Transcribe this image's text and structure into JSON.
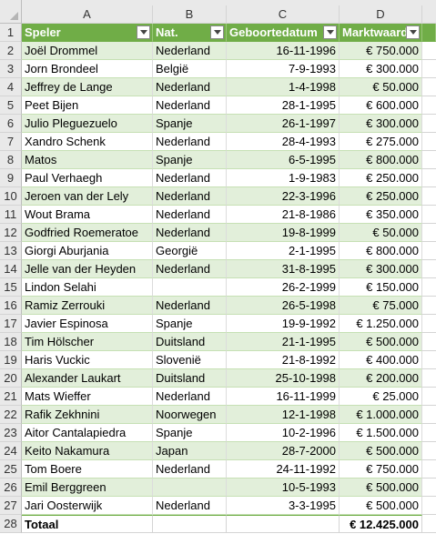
{
  "columns": [
    "A",
    "B",
    "C",
    "D"
  ],
  "headers": {
    "speler": "Speler",
    "nat": "Nat.",
    "geboortedatum": "Geboortedatum",
    "marktwaarde": "Marktwaarde"
  },
  "players": [
    {
      "name": "Joël Drommel",
      "nat": "Nederland",
      "dob": "16-11-1996",
      "value": "€ 750.000"
    },
    {
      "name": "Jorn Brondeel",
      "nat": "België",
      "dob": "7-9-1993",
      "value": "€ 300.000"
    },
    {
      "name": "Jeffrey de Lange",
      "nat": "Nederland",
      "dob": "1-4-1998",
      "value": "€ 50.000"
    },
    {
      "name": "Peet Bijen",
      "nat": "Nederland",
      "dob": "28-1-1995",
      "value": "€ 600.000"
    },
    {
      "name": "Julio Pleguezuelo",
      "nat": "Spanje",
      "dob": "26-1-1997",
      "value": "€ 300.000"
    },
    {
      "name": "Xandro Schenk",
      "nat": "Nederland",
      "dob": "28-4-1993",
      "value": "€ 275.000"
    },
    {
      "name": "Matos",
      "nat": "Spanje",
      "dob": "6-5-1995",
      "value": "€ 800.000"
    },
    {
      "name": "Paul Verhaegh",
      "nat": "Nederland",
      "dob": "1-9-1983",
      "value": "€ 250.000"
    },
    {
      "name": "Jeroen van der Lely",
      "nat": "Nederland",
      "dob": "22-3-1996",
      "value": "€ 250.000"
    },
    {
      "name": "Wout Brama",
      "nat": "Nederland",
      "dob": "21-8-1986",
      "value": "€ 350.000"
    },
    {
      "name": "Godfried Roemeratoe",
      "nat": "Nederland",
      "dob": "19-8-1999",
      "value": "€ 50.000"
    },
    {
      "name": "Giorgi Aburjania",
      "nat": "Georgië",
      "dob": "2-1-1995",
      "value": "€ 800.000"
    },
    {
      "name": "Jelle van der Heyden",
      "nat": "Nederland",
      "dob": "31-8-1995",
      "value": "€ 300.000"
    },
    {
      "name": "Lindon Selahi",
      "nat": "",
      "dob": "26-2-1999",
      "value": "€ 150.000"
    },
    {
      "name": "Ramiz Zerrouki",
      "nat": "Nederland",
      "dob": "26-5-1998",
      "value": "€ 75.000"
    },
    {
      "name": "Javier Espinosa",
      "nat": "Spanje",
      "dob": "19-9-1992",
      "value": "€ 1.250.000"
    },
    {
      "name": "Tim Hölscher",
      "nat": "Duitsland",
      "dob": "21-1-1995",
      "value": "€ 500.000"
    },
    {
      "name": "Haris Vuckic",
      "nat": "Slovenië",
      "dob": "21-8-1992",
      "value": "€ 400.000"
    },
    {
      "name": "Alexander Laukart",
      "nat": "Duitsland",
      "dob": "25-10-1998",
      "value": "€ 200.000"
    },
    {
      "name": "Mats Wieffer",
      "nat": "Nederland",
      "dob": "16-11-1999",
      "value": "€ 25.000"
    },
    {
      "name": "Rafik Zekhnini",
      "nat": "Noorwegen",
      "dob": "12-1-1998",
      "value": "€ 1.000.000"
    },
    {
      "name": "Aitor Cantalapiedra",
      "nat": "Spanje",
      "dob": "10-2-1996",
      "value": "€ 1.500.000"
    },
    {
      "name": "Keito Nakamura",
      "nat": "Japan",
      "dob": "28-7-2000",
      "value": "€ 500.000"
    },
    {
      "name": "Tom Boere",
      "nat": "Nederland",
      "dob": "24-11-1992",
      "value": "€ 750.000"
    },
    {
      "name": "Emil Berggreen",
      "nat": "",
      "dob": "10-5-1993",
      "value": "€ 500.000"
    },
    {
      "name": "Jari Oosterwijk",
      "nat": "Nederland",
      "dob": "3-3-1995",
      "value": "€ 500.000"
    }
  ],
  "total": {
    "label": "Totaal",
    "value": "€ 12.425.000"
  },
  "colors": {
    "header": "#70ad47",
    "band": "#e2efda",
    "sheet_header": "#e9e9e9"
  }
}
